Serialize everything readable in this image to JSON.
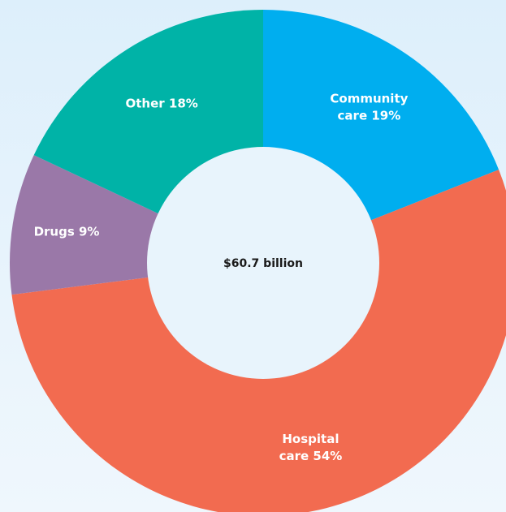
{
  "chart_data": {
    "type": "pie",
    "variant": "donut",
    "total_label": "$60.7 billion",
    "slices": [
      {
        "label_lines": [
          "Community",
          "care 19%"
        ],
        "value": 19,
        "color": "#00aeef"
      },
      {
        "label_lines": [
          "Hospital",
          "care 54%"
        ],
        "value": 54,
        "color": "#f26b50"
      },
      {
        "label_lines": [
          "Drugs 9%"
        ],
        "value": 9,
        "color": "#9a78a8"
      },
      {
        "label_lines": [
          "Other 18%"
        ],
        "value": 18,
        "color": "#00b3a7"
      }
    ],
    "start": "12 o'clock",
    "direction": "clockwise"
  }
}
